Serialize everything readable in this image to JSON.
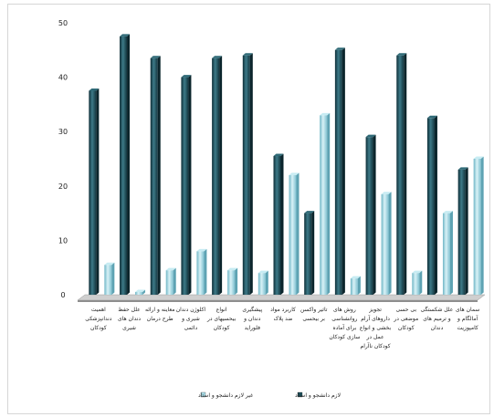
{
  "chart_data": {
    "type": "bar",
    "title": "",
    "xlabel": "",
    "ylabel": "",
    "ylim": [
      0,
      50
    ],
    "yticks": [
      0,
      10,
      20,
      30,
      40,
      50
    ],
    "grid": false,
    "legend_position": "bottom",
    "categories": [
      [
        "اهمیت",
        "دندانپزشکی",
        "کودکان"
      ],
      [
        "علل حفظ",
        "دندان های",
        "شیری"
      ],
      [
        "معاینه و ارائه",
        "طرح درمان"
      ],
      [
        "اکلوژن دندان",
        "شیری و",
        "دائمی"
      ],
      [
        "انواع",
        "بیحسیهای در",
        "کودکان"
      ],
      [
        "پیشگیری",
        "دندان و",
        "فلوراید"
      ],
      [
        "کاربرد مواد",
        "ضد پلاک"
      ],
      [
        "تاثیر واکسن",
        "بر بیحسی"
      ],
      [
        "روش های",
        "روانشناسی",
        "برای آماده",
        "سازی کودکان"
      ],
      [
        "تجویز",
        "داروهای آرام",
        "بخشی و انواع",
        "عمل در",
        "کودکان ناآرام"
      ],
      [
        "بی حسی",
        "موضعی در",
        "کودکان"
      ],
      [
        "علل شکستگی",
        "و ترمیم های",
        "دندان"
      ],
      [
        "سمان های",
        "آمالگام و",
        "کامپوزیت"
      ]
    ],
    "series": [
      {
        "name": "لازم دانشجو و استاد",
        "color": "#1d4f5b",
        "values": [
          37.5,
          47.5,
          43.5,
          40,
          43.5,
          44,
          25.5,
          15,
          45,
          29,
          44,
          32.5,
          23
        ]
      },
      {
        "name": "غیر لازم دانشجو و استاد",
        "color": "#a8dbe6",
        "values": [
          5.5,
          0.5,
          4.5,
          8,
          4.5,
          4,
          22,
          33,
          3,
          18.5,
          4,
          15,
          25
        ]
      }
    ]
  }
}
